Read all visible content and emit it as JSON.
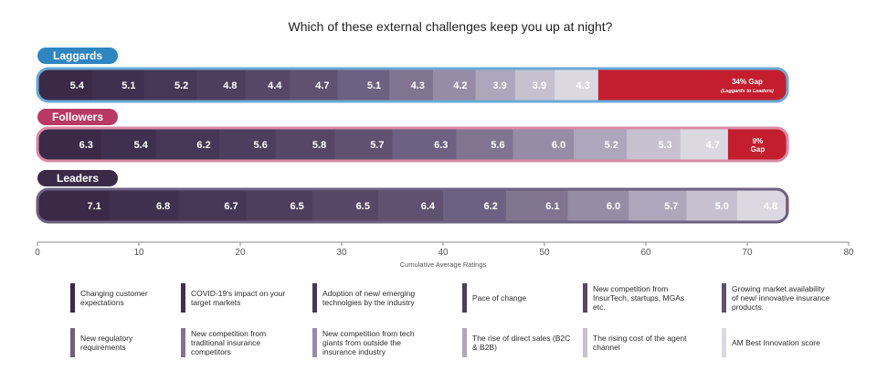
{
  "chart_data": {
    "type": "bar",
    "orientation": "horizontal",
    "stacked": true,
    "title": "Which of these external challenges keep you up at night?",
    "xlabel": "Cumulative Average Ratings",
    "ylabel": "",
    "xlim": [
      0,
      80
    ],
    "xticks": [
      "0",
      "10",
      "20",
      "30",
      "40",
      "50",
      "60",
      "70",
      "80"
    ],
    "grid": false,
    "legend_position": "bottom",
    "segment_colors": [
      "#3a2a48",
      "#40304f",
      "#473757",
      "#4d3e5e",
      "#564766",
      "#5f516f",
      "#6d6080",
      "#807491",
      "#978ca6",
      "#aea6bb",
      "#c6c0cf",
      "#dcd8e1"
    ],
    "gap_color": "#c41e2e",
    "groups": [
      {
        "name": "Laggards",
        "label_color": "#2e86c1",
        "border_color": "#6aaad6",
        "values": [
          5.4,
          5.1,
          5.2,
          4.8,
          4.4,
          4.7,
          5.1,
          4.3,
          4.2,
          3.9,
          3.9,
          4.3
        ],
        "value_labels": [
          "5.4",
          "5.1",
          "5.2",
          "4.8",
          "4.4",
          "4.7",
          "5.1",
          "4.3",
          "4.2",
          "3.9",
          "3.9",
          "4.3"
        ],
        "gap_label": "34% Gap",
        "gap_sublabel": "(Laggards to Leaders)"
      },
      {
        "name": "Followers",
        "label_color": "#b83a64",
        "border_color": "#d98aa6",
        "values": [
          6.3,
          5.4,
          6.2,
          5.6,
          5.8,
          5.7,
          6.3,
          5.6,
          6.0,
          5.2,
          5.3,
          4.7
        ],
        "value_labels": [
          "6.3",
          "5.4",
          "6.2",
          "5.6",
          "5.8",
          "5.7",
          "6.3",
          "5.6",
          "6.0",
          "5.2",
          "5.3",
          "4.7"
        ],
        "gap_label": "9%",
        "gap_sublabel": "Gap"
      },
      {
        "name": "Leaders",
        "label_color": "#3a2a48",
        "border_color": "#6d6080",
        "values": [
          7.1,
          6.8,
          6.7,
          6.5,
          6.5,
          6.4,
          6.2,
          6.1,
          6.0,
          5.7,
          5.0,
          4.8
        ],
        "value_labels": [
          "7.1",
          "6.8",
          "6.7",
          "6.5",
          "6.5",
          "6.4",
          "6.2",
          "6.1",
          "6.0",
          "5.7",
          "5.0",
          "4.8"
        ],
        "gap_label": "",
        "gap_sublabel": ""
      }
    ],
    "legend": [
      "Changing customer expectations",
      "COVID-19's impact on your target markets",
      "Adoption of new/ emerging technolgies by the industry",
      "Pace of change",
      "New competition from InsurTech, startups, MGAs etc.",
      "Growing market availability of new/ innovative insurance products.",
      "New regulatory requirements",
      "New competition from traditional insurance competitors",
      "New competition from tech giants from outside the insurance industry",
      "The rise of direct sales (B2C & B2B)",
      "The rising cost of the agent channel",
      "AM Best Innovation score"
    ]
  }
}
